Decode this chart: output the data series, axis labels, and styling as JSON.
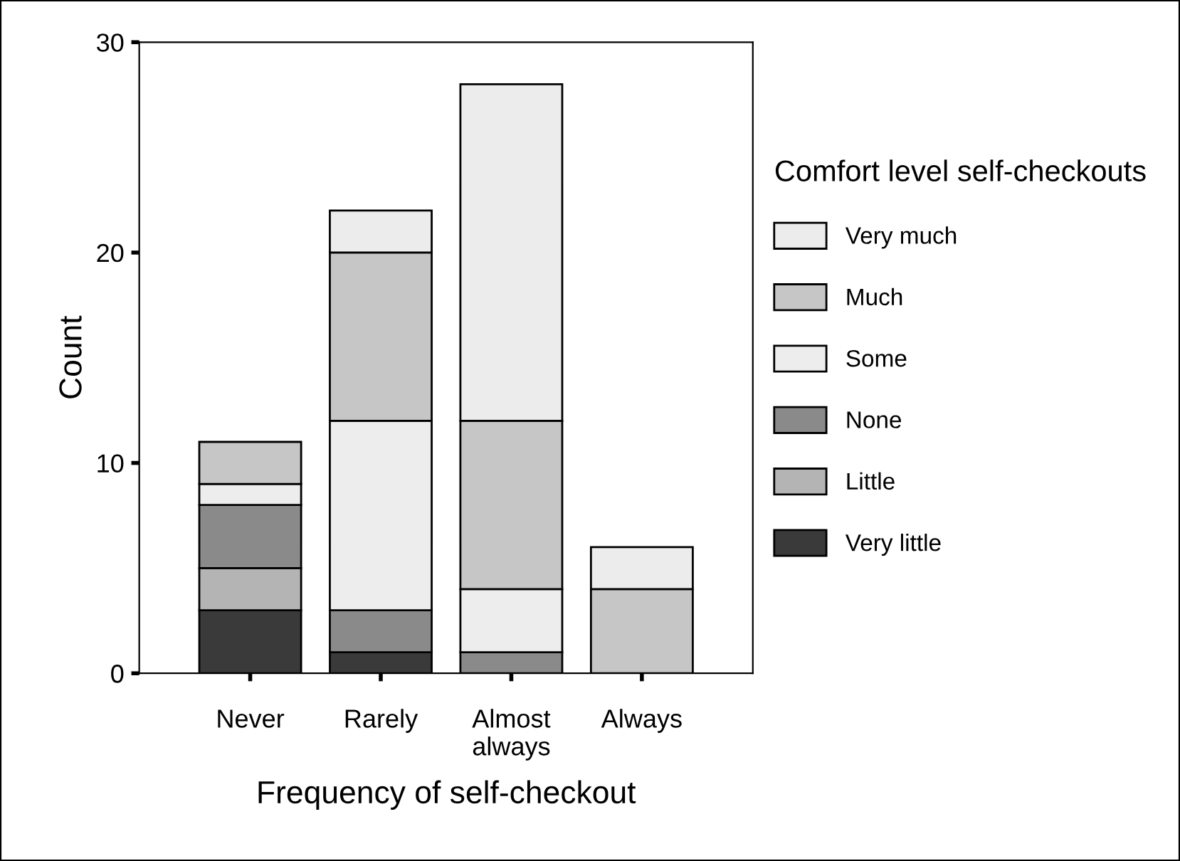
{
  "chart_data": {
    "type": "bar",
    "stacked": true,
    "xlabel": "Frequency of self-checkout",
    "ylabel": "Count",
    "legend_title": "Comfort level self-checkouts",
    "categories": [
      "Never",
      "Rarely",
      "Almost\nalways",
      "Always"
    ],
    "series": [
      {
        "name": "Very little",
        "color": "#3a3a3a",
        "values": [
          3,
          1,
          0,
          0
        ]
      },
      {
        "name": "Little",
        "color": "#b4b4b4",
        "values": [
          2,
          0,
          0,
          0
        ]
      },
      {
        "name": "None",
        "color": "#8a8a8a",
        "values": [
          3,
          2,
          1,
          0
        ]
      },
      {
        "name": "Some",
        "color": "#ededed",
        "values": [
          1,
          9,
          3,
          0
        ]
      },
      {
        "name": "Much",
        "color": "#c6c6c6",
        "values": [
          2,
          8,
          8,
          4
        ]
      },
      {
        "name": "Very much",
        "color": "#ececec",
        "values": [
          0,
          2,
          16,
          2
        ]
      }
    ],
    "ylim": [
      0,
      30
    ],
    "yticks": [
      0,
      10,
      20,
      30
    ],
    "grid": false,
    "legend": "right"
  }
}
